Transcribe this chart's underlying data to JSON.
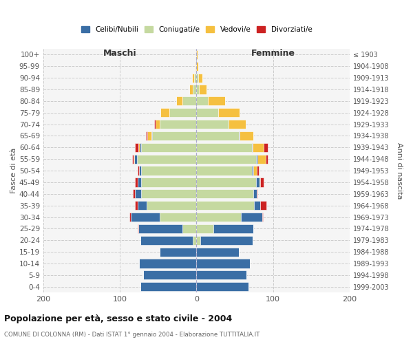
{
  "age_groups": [
    "0-4",
    "5-9",
    "10-14",
    "15-19",
    "20-24",
    "25-29",
    "30-34",
    "35-39",
    "40-44",
    "45-49",
    "50-54",
    "55-59",
    "60-64",
    "65-69",
    "70-74",
    "75-79",
    "80-84",
    "85-89",
    "90-94",
    "95-99",
    "100+"
  ],
  "birth_years": [
    "1999-2003",
    "1994-1998",
    "1989-1993",
    "1984-1988",
    "1979-1983",
    "1974-1978",
    "1969-1973",
    "1964-1968",
    "1959-1963",
    "1954-1958",
    "1949-1953",
    "1944-1948",
    "1939-1943",
    "1934-1938",
    "1929-1933",
    "1924-1928",
    "1919-1923",
    "1914-1918",
    "1909-1913",
    "1904-1908",
    "≤ 1903"
  ],
  "colors": {
    "celibe": "#3a6ea5",
    "coniugato": "#c5d9a0",
    "vedovo": "#f5c040",
    "divorziato": "#cc2222"
  },
  "males": {
    "celibe": [
      73,
      70,
      75,
      48,
      68,
      58,
      38,
      12,
      8,
      5,
      3,
      3,
      2,
      1,
      0,
      0,
      0,
      0,
      0,
      0,
      0
    ],
    "coniugato": [
      0,
      0,
      0,
      0,
      5,
      18,
      48,
      65,
      72,
      72,
      72,
      78,
      72,
      58,
      48,
      35,
      18,
      5,
      3,
      1,
      0
    ],
    "vedovo": [
      0,
      0,
      0,
      0,
      0,
      0,
      0,
      0,
      0,
      0,
      0,
      1,
      2,
      5,
      5,
      12,
      8,
      4,
      3,
      1,
      1
    ],
    "divorziato": [
      0,
      0,
      0,
      0,
      0,
      1,
      2,
      3,
      3,
      3,
      2,
      2,
      4,
      2,
      2,
      0,
      0,
      0,
      0,
      0,
      0
    ]
  },
  "females": {
    "nubile": [
      68,
      65,
      70,
      55,
      68,
      52,
      28,
      8,
      5,
      4,
      2,
      2,
      1,
      1,
      0,
      0,
      0,
      0,
      0,
      0,
      0
    ],
    "coniugata": [
      0,
      0,
      0,
      0,
      5,
      22,
      58,
      75,
      74,
      78,
      72,
      78,
      72,
      55,
      42,
      28,
      15,
      3,
      2,
      0,
      0
    ],
    "vedova": [
      0,
      0,
      0,
      0,
      0,
      0,
      0,
      0,
      0,
      1,
      5,
      10,
      15,
      18,
      22,
      28,
      22,
      10,
      6,
      2,
      1
    ],
    "divorziata": [
      0,
      0,
      0,
      0,
      0,
      0,
      1,
      8,
      1,
      5,
      2,
      3,
      5,
      0,
      0,
      0,
      0,
      0,
      0,
      0,
      0
    ]
  },
  "title": "Popolazione per età, sesso e stato civile - 2004",
  "subtitle": "COMUNE DI COLONNA (RM) - Dati ISTAT 1° gennaio 2004 - Elaborazione TUTTITALIA.IT",
  "xlabel_left": "Maschi",
  "xlabel_right": "Femmine",
  "ylabel_left": "Fasce di età",
  "ylabel_right": "Anni di nascita",
  "xlim": 200,
  "legend_labels": [
    "Celibi/Nubili",
    "Coniugati/e",
    "Vedovi/e",
    "Divorziati/e"
  ]
}
